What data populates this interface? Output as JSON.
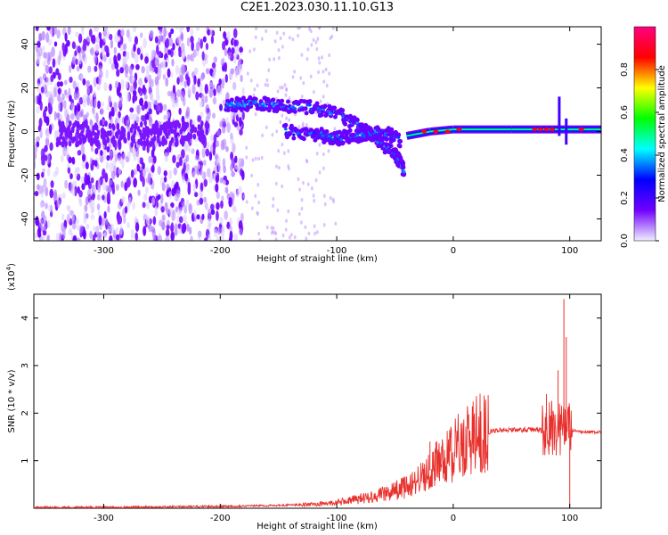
{
  "figure_title": "C2E1.2023.030.11.10.G13",
  "chart_data": [
    {
      "type": "heatmap",
      "title": "",
      "xlabel": "Height of straight line (km)",
      "ylabel": "Frequency (Hz)",
      "xlim": [
        -360,
        127
      ],
      "ylim": [
        -50,
        48
      ],
      "xticks": [
        -300,
        -200,
        -100,
        0,
        100
      ],
      "yticks": [
        -40,
        -20,
        0,
        20,
        40
      ],
      "colorbar": {
        "label": "Normalized spectral amplitude",
        "range": [
          0,
          1
        ],
        "ticks": [
          0.0,
          0.2,
          0.4,
          0.6,
          0.8
        ],
        "colormap": [
          "#f0f0ff",
          "#7000ff",
          "#0000ff",
          "#00ffff",
          "#00ff00",
          "#ffff00",
          "#ff0000",
          "#ff0080"
        ]
      },
      "features": [
        {
          "name": "noise",
          "x_range": [
            -360,
            -180
          ],
          "freq_range": [
            -50,
            48
          ],
          "amplitude": 0.1
        },
        {
          "name": "wave-branch-upper",
          "points": [
            [
              -195,
              12
            ],
            [
              -170,
              13
            ],
            [
              -150,
              12
            ],
            [
              -120,
              11
            ],
            [
              -95,
              7
            ],
            [
              -80,
              2
            ],
            [
              -65,
              -4
            ],
            [
              -50,
              -10
            ],
            [
              -42,
              -18
            ]
          ],
          "amplitude": 0.3
        },
        {
          "name": "wave-branch-lower",
          "points": [
            [
              -145,
              0
            ],
            [
              -120,
              -1
            ],
            [
              -100,
              -3
            ],
            [
              -80,
              -2
            ],
            [
              -60,
              0
            ],
            [
              -45,
              -4
            ]
          ],
          "amplitude": 0.3
        },
        {
          "name": "carrier",
          "points": [
            [
              -40,
              -2
            ],
            [
              -20,
              0
            ],
            [
              0,
              1
            ],
            [
              20,
              1
            ],
            [
              50,
              1
            ],
            [
              90,
              1
            ],
            [
              127,
              1
            ]
          ],
          "amplitude": 0.9
        }
      ]
    },
    {
      "type": "line",
      "title": "",
      "xlabel": "Height of straight line (km)",
      "ylabel": "SNR (10 * v/v)",
      "yscale_label": "(x10",
      "yscale_exp": "4",
      "yscale_close": ")",
      "xlim": [
        -360,
        127
      ],
      "ylim": [
        0,
        4.5
      ],
      "xticks": [
        -300,
        -200,
        -100,
        0,
        100
      ],
      "yticks": [
        1,
        2,
        3,
        4
      ],
      "color": "#e8302c",
      "series": [
        {
          "x": [
            -360,
            -300,
            -250,
            -200,
            -150,
            -120,
            -100,
            -80,
            -60,
            -40,
            -30,
            -20,
            -10,
            0,
            10,
            20,
            30,
            40,
            60,
            80,
            90,
            95,
            100,
            110,
            127
          ],
          "y": [
            0.02,
            0.02,
            0.03,
            0.04,
            0.06,
            0.08,
            0.12,
            0.2,
            0.3,
            0.45,
            0.6,
            0.8,
            1.0,
            1.2,
            1.4,
            1.55,
            1.6,
            1.65,
            1.65,
            1.65,
            1.7,
            1.7,
            1.65,
            1.6,
            1.6
          ]
        }
      ],
      "spikes": [
        {
          "x": 80,
          "y": 2.4
        },
        {
          "x": 85,
          "y": 1.9
        },
        {
          "x": 90,
          "y": 2.9
        },
        {
          "x": 95,
          "y": 4.4
        },
        {
          "x": 97,
          "y": 3.6
        },
        {
          "x": 100,
          "y": 0.0
        },
        {
          "x": -20,
          "y": 1.4
        },
        {
          "x": -10,
          "y": 1.3
        }
      ]
    }
  ]
}
